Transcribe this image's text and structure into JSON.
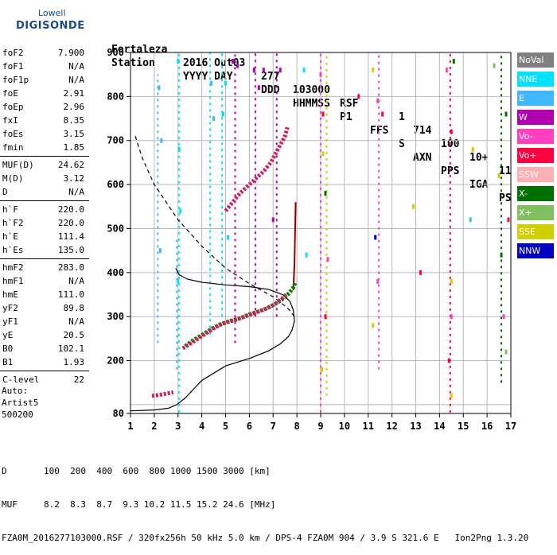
{
  "logo": {
    "line1": "Lowell",
    "line2": "DIGISONDE"
  },
  "header": {
    "labels": [
      "Station",
      "YYYY DAY",
      "DDD",
      "HHMMSS",
      "P1",
      "FFS",
      "S",
      "AXN",
      "PPS",
      "IGA",
      "PS"
    ],
    "values": [
      "Fortaleza",
      "2016 Out03",
      "277",
      "103000",
      "RSF",
      "1",
      "714",
      "100",
      "10+",
      "11"
    ]
  },
  "params": [
    [
      {
        "n": "foF2",
        "v": "7.900"
      },
      {
        "n": "foF1",
        "v": "N/A"
      },
      {
        "n": "foF1p",
        "v": "N/A"
      },
      {
        "n": "foE",
        "v": "2.91"
      },
      {
        "n": "foEp",
        "v": "2.96"
      },
      {
        "n": "fxI",
        "v": "8.35"
      },
      {
        "n": "foEs",
        "v": "3.15"
      },
      {
        "n": "fmin",
        "v": "1.85"
      }
    ],
    [
      {
        "n": "MUF(D)",
        "v": "24.62"
      },
      {
        "n": "M(D)",
        "v": "3.12"
      },
      {
        "n": "D",
        "v": "N/A"
      }
    ],
    [
      {
        "n": "h`F",
        "v": "220.0"
      },
      {
        "n": "h`F2",
        "v": "220.0"
      },
      {
        "n": "h`E",
        "v": "111.4"
      },
      {
        "n": "h`Es",
        "v": "135.0"
      }
    ],
    [
      {
        "n": "hmF2",
        "v": "283.0"
      },
      {
        "n": "hmF1",
        "v": "N/A"
      },
      {
        "n": "hmE",
        "v": "111.0"
      },
      {
        "n": "yF2",
        "v": "89.8"
      },
      {
        "n": "yF1",
        "v": "N/A"
      },
      {
        "n": "yE",
        "v": "20.5"
      },
      {
        "n": "B0",
        "v": "102.1"
      },
      {
        "n": "B1",
        "v": "1.93"
      }
    ],
    [
      {
        "n": "C-level",
        "v": "22"
      }
    ]
  ],
  "auto": {
    "l1": "Auto:",
    "l2": "Artist5",
    "l3": "500200"
  },
  "legend": [
    {
      "name": "NoVal",
      "color": "#808080"
    },
    {
      "name": "NNE",
      "color": "#00e0ff"
    },
    {
      "name": "E",
      "color": "#40b8ff"
    },
    {
      "name": "W",
      "color": "#b000b0"
    },
    {
      "name": "Vo-",
      "color": "#ff40c0"
    },
    {
      "name": "Vo+",
      "color": "#ff0040"
    },
    {
      "name": "SSW",
      "color": "#ffb0b0"
    },
    {
      "name": "X-",
      "color": "#007000"
    },
    {
      "name": "X+",
      "color": "#80c060"
    },
    {
      "name": "SSE",
      "color": "#d0d000"
    },
    {
      "name": "NNW",
      "color": "#0000c0"
    }
  ],
  "bottom": {
    "line1": "D       100  200  400  600  800 1000 1500 3000 [km]",
    "line2": "MUF     8.2  8.3  8.7  9.3 10.2 11.5 15.2 24.6 [MHz]",
    "line3": "FZA0M_2016277103000.RSF / 320fx256h 50 kHz 5.0 km / DPS-4 FZA0M 904 / 3.9 S 321.6 E   Ion2Png 1.3.20"
  },
  "chart_data": {
    "type": "scatter",
    "xlim": [
      1,
      17
    ],
    "ylim": [
      80,
      900
    ],
    "xticks": [
      1,
      2,
      3,
      4,
      5,
      6,
      7,
      8,
      9,
      10,
      11,
      12,
      13,
      14,
      15,
      16,
      17
    ],
    "yticks": [
      80,
      200,
      300,
      400,
      500,
      600,
      700,
      800,
      900
    ],
    "x_gridlines": [
      1,
      2,
      3,
      4,
      5,
      6,
      7,
      8,
      9,
      10,
      11,
      12,
      13,
      14,
      15,
      16,
      17
    ],
    "y_gridlines": [
      100,
      200,
      300,
      400,
      500,
      600,
      700,
      800,
      900
    ],
    "grid": true,
    "series": [
      {
        "color": "#000000",
        "style": "solid",
        "x": [
          1.0,
          2.0,
          2.6,
          2.95,
          3.3,
          4.0,
          5.0,
          6.0,
          6.8,
          7.3,
          7.65,
          7.8,
          7.9,
          7.85,
          7.7,
          7.4,
          6.8,
          6.0,
          5.0,
          4.0,
          3.4,
          3.05,
          2.9
        ],
        "y": [
          86,
          88,
          92,
          100,
          115,
          155,
          188,
          205,
          222,
          238,
          255,
          270,
          290,
          315,
          335,
          350,
          362,
          368,
          372,
          378,
          385,
          395,
          410
        ]
      },
      {
        "color": "#000000",
        "style": "dashed",
        "x": [
          1.2,
          1.5,
          2.0,
          3.0,
          4.0,
          5.0,
          6.0,
          7.0,
          7.6,
          7.9
        ],
        "y": [
          710,
          660,
          600,
          520,
          460,
          410,
          375,
          345,
          320,
          300
        ]
      },
      {
        "color": "#8b0000",
        "style": "solid",
        "x": [
          7.85,
          7.9,
          7.92,
          7.95
        ],
        "y": [
          360,
          420,
          480,
          560
        ]
      },
      {
        "color": "#008000",
        "style": "trace",
        "x": [
          3.3,
          3.6,
          4.0,
          4.4,
          4.8,
          5.2,
          5.6,
          6.0,
          6.4,
          6.7,
          7.0,
          7.3,
          7.5,
          7.7,
          7.85,
          7.95
        ],
        "y": [
          233,
          245,
          258,
          272,
          283,
          290,
          296,
          305,
          312,
          318,
          326,
          336,
          344,
          355,
          366,
          380
        ]
      },
      {
        "color": "#d02060",
        "style": "trace",
        "x": [
          3.2,
          3.5,
          3.9,
          4.3,
          4.7,
          5.1,
          5.5,
          5.9,
          6.3,
          6.7,
          7.0,
          7.2,
          7.4,
          7.55
        ],
        "y": [
          228,
          238,
          252,
          266,
          280,
          288,
          294,
          302,
          310,
          318,
          326,
          334,
          342,
          350
        ]
      },
      {
        "color": "#d02060",
        "style": "trace",
        "x": [
          5.0,
          5.3,
          5.6,
          6.0,
          6.3,
          6.6,
          6.9,
          7.1,
          7.3,
          7.5,
          7.6
        ],
        "y": [
          540,
          560,
          580,
          600,
          615,
          630,
          650,
          670,
          690,
          710,
          730
        ]
      },
      {
        "color": "#d02060",
        "style": "trace",
        "x": [
          1.9,
          2.2,
          2.5,
          2.8
        ],
        "y": [
          120,
          122,
          125,
          128
        ]
      }
    ],
    "scatter_spots": [
      {
        "x": 2.2,
        "y": 820,
        "c": "#40b8ff"
      },
      {
        "x": 2.3,
        "y": 700,
        "c": "#40b8ff"
      },
      {
        "x": 2.25,
        "y": 450,
        "c": "#40b8ff"
      },
      {
        "x": 3.0,
        "y": 880,
        "c": "#00e0ff"
      },
      {
        "x": 3.05,
        "y": 680,
        "c": "#00e0ff"
      },
      {
        "x": 3.1,
        "y": 540,
        "c": "#00e0ff"
      },
      {
        "x": 3.0,
        "y": 380,
        "c": "#00e0ff"
      },
      {
        "x": 4.4,
        "y": 830,
        "c": "#40b8ff"
      },
      {
        "x": 4.5,
        "y": 750,
        "c": "#40b8ff"
      },
      {
        "x": 5.0,
        "y": 830,
        "c": "#00e0ff"
      },
      {
        "x": 4.9,
        "y": 760,
        "c": "#00e0ff"
      },
      {
        "x": 5.1,
        "y": 480,
        "c": "#00e0ff"
      },
      {
        "x": 5.3,
        "y": 880,
        "c": "#b000b0"
      },
      {
        "x": 5.5,
        "y": 870,
        "c": "#b000b0"
      },
      {
        "x": 6.2,
        "y": 860,
        "c": "#b000b0"
      },
      {
        "x": 6.4,
        "y": 820,
        "c": "#b000b0"
      },
      {
        "x": 6.6,
        "y": 860,
        "c": "#b000b0"
      },
      {
        "x": 7.3,
        "y": 860,
        "c": "#b000b0"
      },
      {
        "x": 7.0,
        "y": 520,
        "c": "#b000b0"
      },
      {
        "x": 8.3,
        "y": 860,
        "c": "#00e0ff"
      },
      {
        "x": 8.4,
        "y": 440,
        "c": "#00e0ff"
      },
      {
        "x": 9.0,
        "y": 850,
        "c": "#ff40c0"
      },
      {
        "x": 9.1,
        "y": 760,
        "c": "#ff0040"
      },
      {
        "x": 9.1,
        "y": 670,
        "c": "#d0d000"
      },
      {
        "x": 9.2,
        "y": 580,
        "c": "#007000"
      },
      {
        "x": 9.3,
        "y": 430,
        "c": "#ff40c0"
      },
      {
        "x": 9.2,
        "y": 300,
        "c": "#ff0040"
      },
      {
        "x": 9.05,
        "y": 180,
        "c": "#d0d000"
      },
      {
        "x": 10.6,
        "y": 800,
        "c": "#ff0040"
      },
      {
        "x": 11.2,
        "y": 860,
        "c": "#d0d000"
      },
      {
        "x": 11.4,
        "y": 790,
        "c": "#ff40c0"
      },
      {
        "x": 11.6,
        "y": 760,
        "c": "#ff0040"
      },
      {
        "x": 11.3,
        "y": 480,
        "c": "#0000c0"
      },
      {
        "x": 11.4,
        "y": 380,
        "c": "#ff40c0"
      },
      {
        "x": 11.2,
        "y": 280,
        "c": "#d0d000"
      },
      {
        "x": 12.9,
        "y": 550,
        "c": "#d0d000"
      },
      {
        "x": 13.2,
        "y": 400,
        "c": "#ff0040"
      },
      {
        "x": 14.3,
        "y": 860,
        "c": "#ff40c0"
      },
      {
        "x": 14.5,
        "y": 720,
        "c": "#ff0040"
      },
      {
        "x": 14.6,
        "y": 880,
        "c": "#007000"
      },
      {
        "x": 14.5,
        "y": 380,
        "c": "#d0d000"
      },
      {
        "x": 14.5,
        "y": 300,
        "c": "#ff40c0"
      },
      {
        "x": 14.4,
        "y": 200,
        "c": "#ff0040"
      },
      {
        "x": 14.5,
        "y": 120,
        "c": "#d0d000"
      },
      {
        "x": 15.4,
        "y": 680,
        "c": "#d0d000"
      },
      {
        "x": 15.3,
        "y": 520,
        "c": "#40b8ff"
      },
      {
        "x": 16.3,
        "y": 870,
        "c": "#80c060"
      },
      {
        "x": 16.5,
        "y": 620,
        "c": "#d0d000"
      },
      {
        "x": 16.6,
        "y": 440,
        "c": "#007000"
      },
      {
        "x": 16.7,
        "y": 300,
        "c": "#ff40c0"
      },
      {
        "x": 16.8,
        "y": 760,
        "c": "#007000"
      },
      {
        "x": 16.9,
        "y": 520,
        "c": "#ff0040"
      },
      {
        "x": 16.8,
        "y": 220,
        "c": "#80c060"
      }
    ],
    "streaks": [
      {
        "x": 3.05,
        "y0": 82,
        "y1": 900,
        "c": "#00e0ff"
      },
      {
        "x": 2.95,
        "y0": 180,
        "y1": 480,
        "c": "#40b8ff"
      },
      {
        "x": 2.15,
        "y0": 240,
        "y1": 850,
        "c": "#40b8ff"
      },
      {
        "x": 4.35,
        "y0": 260,
        "y1": 900,
        "c": "#00e0ff"
      },
      {
        "x": 4.85,
        "y0": 300,
        "y1": 900,
        "c": "#00e0ff"
      },
      {
        "x": 5.4,
        "y0": 240,
        "y1": 900,
        "c": "#b000b0"
      },
      {
        "x": 6.25,
        "y0": 300,
        "y1": 900,
        "c": "#b000b0"
      },
      {
        "x": 7.15,
        "y0": 300,
        "y1": 900,
        "c": "#b000b0"
      },
      {
        "x": 9.0,
        "y0": 82,
        "y1": 900,
        "c": "#ff40c0"
      },
      {
        "x": 9.25,
        "y0": 120,
        "y1": 900,
        "c": "#d0d000"
      },
      {
        "x": 11.45,
        "y0": 180,
        "y1": 900,
        "c": "#ff40c0"
      },
      {
        "x": 14.45,
        "y0": 82,
        "y1": 900,
        "c": "#ff0040"
      },
      {
        "x": 16.6,
        "y0": 150,
        "y1": 900,
        "c": "#007000"
      }
    ]
  }
}
